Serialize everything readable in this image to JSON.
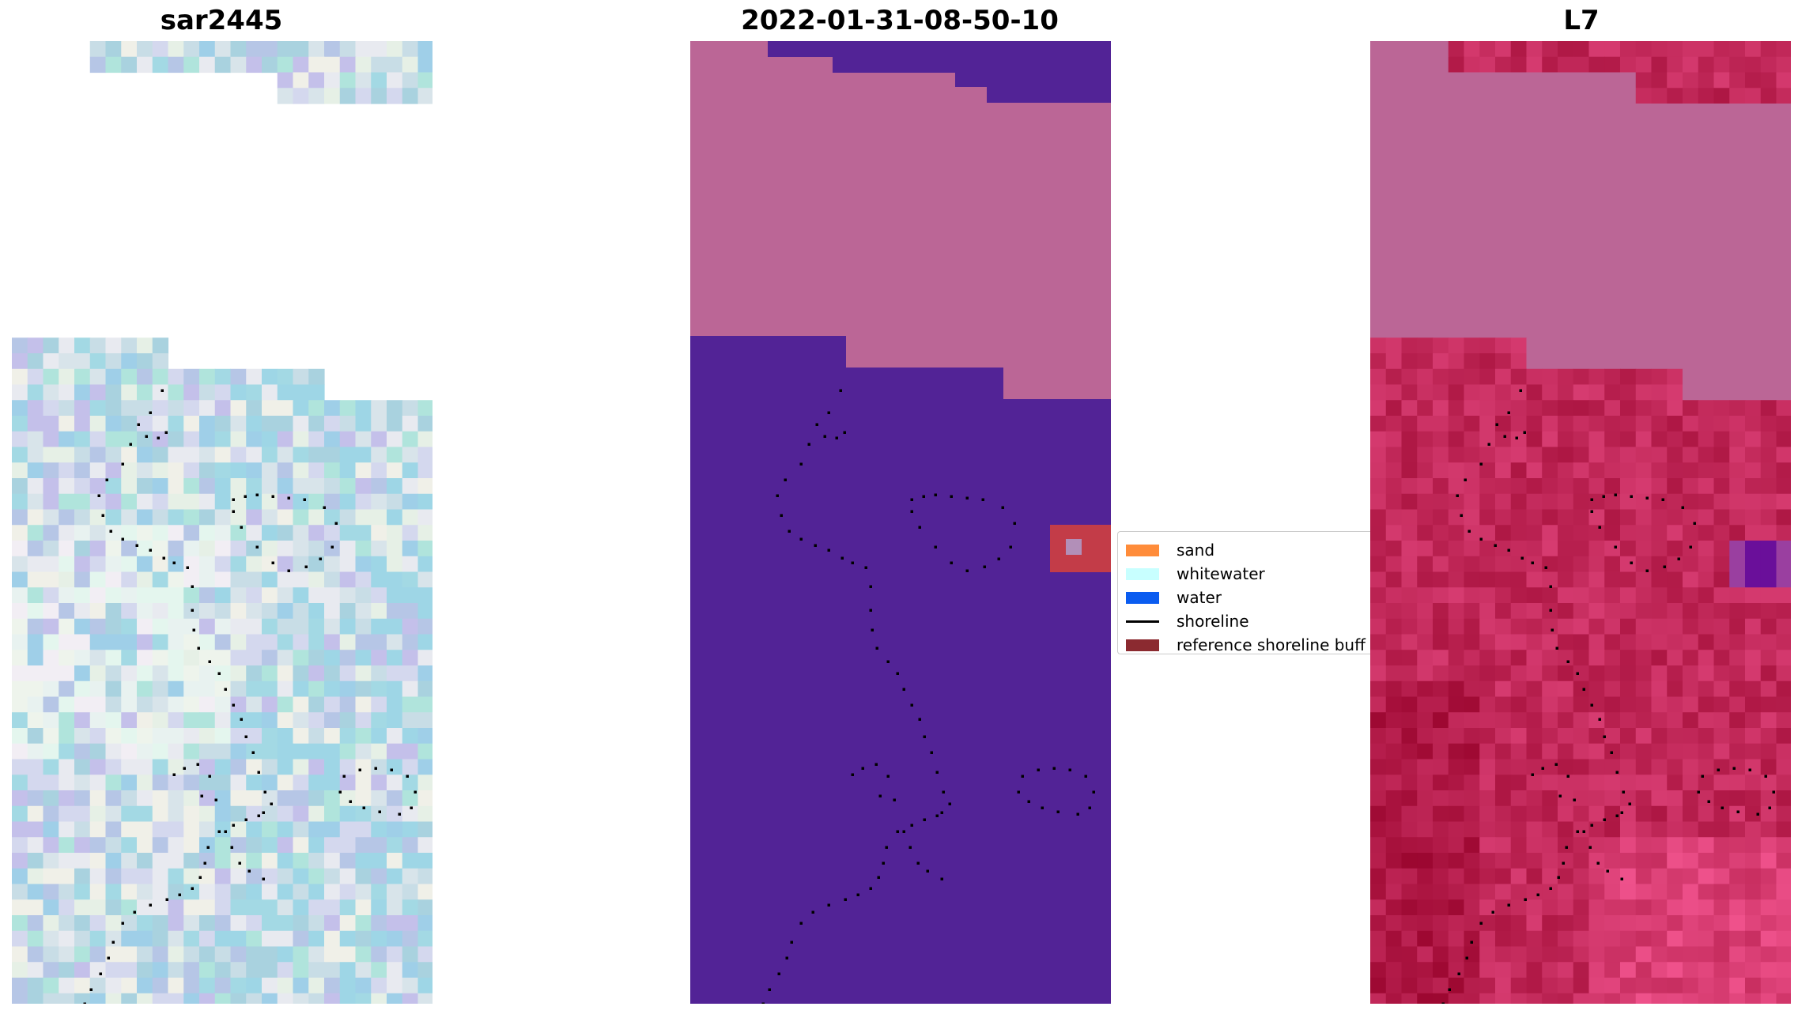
{
  "panels": [
    {
      "title": "sar2445"
    },
    {
      "title": "2022-01-31-08-50-10"
    },
    {
      "title": "L7"
    }
  ],
  "legend": {
    "items": [
      {
        "label": "sand",
        "color": "#ff8c3a"
      },
      {
        "label": "whitewater",
        "color": "#c8ffff"
      },
      {
        "label": "water",
        "color": "#0a5cf0"
      },
      {
        "label": "shoreline",
        "color": "#000000",
        "type": "line"
      },
      {
        "label": "reference shoreline buff",
        "color": "#8b2a30"
      }
    ]
  },
  "colors": {
    "classification_water": "#522396",
    "classification_buffer": "#bb6696",
    "classification_highlight": "#c33c48",
    "rgb_tint": "#a9d2df",
    "l7_tint": "#c2295a",
    "shoreline": "#000000"
  }
}
